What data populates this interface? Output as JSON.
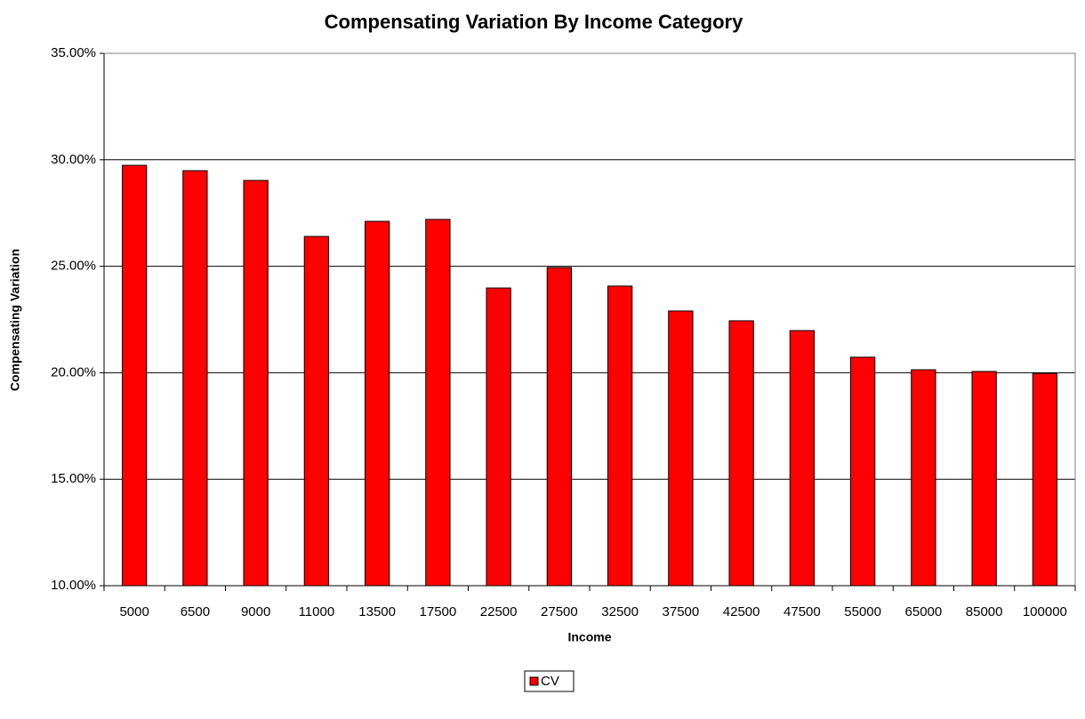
{
  "chart_data": {
    "type": "bar",
    "title": "Compensating Variation By Income Category",
    "x_label": "Income",
    "y_label": "Compensating Variation",
    "categories": [
      "5000",
      "6500",
      "9000",
      "11000",
      "13500",
      "17500",
      "22500",
      "27500",
      "32500",
      "37500",
      "42500",
      "47500",
      "55000",
      "65000",
      "85000",
      "100000"
    ],
    "series": [
      {
        "name": "CV",
        "color": "#ff0000",
        "values": [
          29.74,
          29.49,
          29.03,
          26.4,
          27.11,
          27.2,
          23.98,
          24.94,
          24.07,
          22.9,
          22.44,
          21.98,
          20.73,
          20.14,
          20.06,
          19.97
        ]
      }
    ],
    "ylim": [
      10,
      35
    ],
    "yticks": [
      {
        "value": 10,
        "label": "10.00%"
      },
      {
        "value": 15,
        "label": "15.00%"
      },
      {
        "value": 20,
        "label": "20.00%"
      },
      {
        "value": 25,
        "label": "25.00%"
      },
      {
        "value": 30,
        "label": "30.00%"
      },
      {
        "value": 35,
        "label": "35.00%"
      }
    ],
    "grid": true,
    "legend": "bottom"
  }
}
